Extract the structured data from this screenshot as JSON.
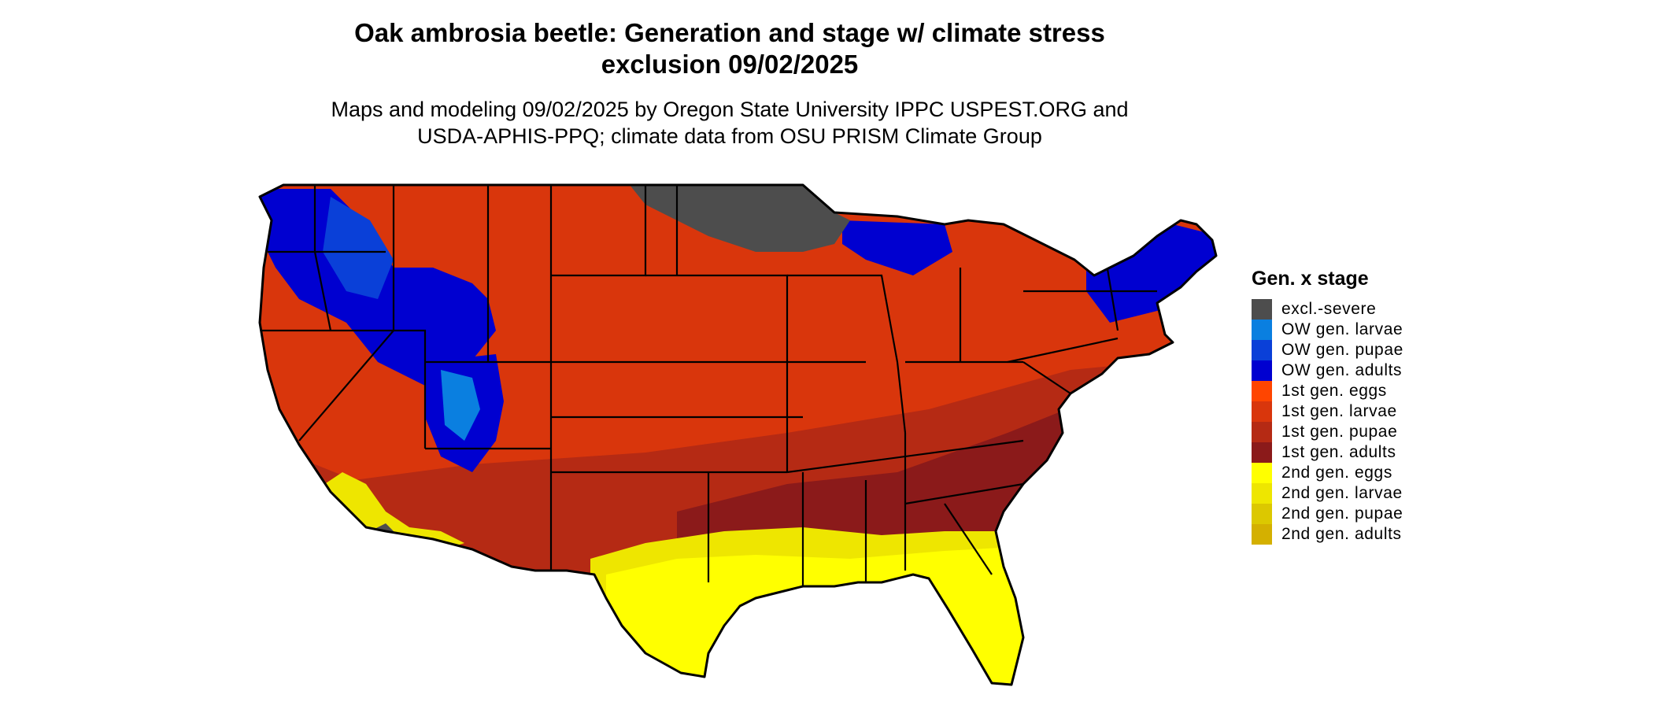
{
  "title_line1": "Oak ambrosia beetle: Generation and stage w/ climate stress",
  "title_line2": "exclusion 09/02/2025",
  "subtitle_line1": "Maps and modeling 09/02/2025 by Oregon State University IPPC USPEST.ORG and",
  "subtitle_line2": "USDA-APHIS-PPQ; climate data from OSU PRISM Climate Group",
  "legend": {
    "title": "Gen. x stage",
    "items": [
      {
        "label": "excl.-severe",
        "color": "#4d4d4d"
      },
      {
        "label": "OW gen. larvae",
        "color": "#0a7fe0"
      },
      {
        "label": "OW gen. pupae",
        "color": "#0a40d8"
      },
      {
        "label": "OW gen. adults",
        "color": "#0000d0"
      },
      {
        "label": "1st gen. eggs",
        "color": "#ff4500"
      },
      {
        "label": "1st gen. larvae",
        "color": "#d9360c"
      },
      {
        "label": "1st gen. pupae",
        "color": "#b52a14"
      },
      {
        "label": "1st gen. adults",
        "color": "#8b1a1a"
      },
      {
        "label": "2nd gen. eggs",
        "color": "#ffff00"
      },
      {
        "label": "2nd gen. larvae",
        "color": "#eee600"
      },
      {
        "label": "2nd gen. pupae",
        "color": "#dcc800"
      },
      {
        "label": "2nd gen. adults",
        "color": "#d4b000"
      }
    ]
  }
}
